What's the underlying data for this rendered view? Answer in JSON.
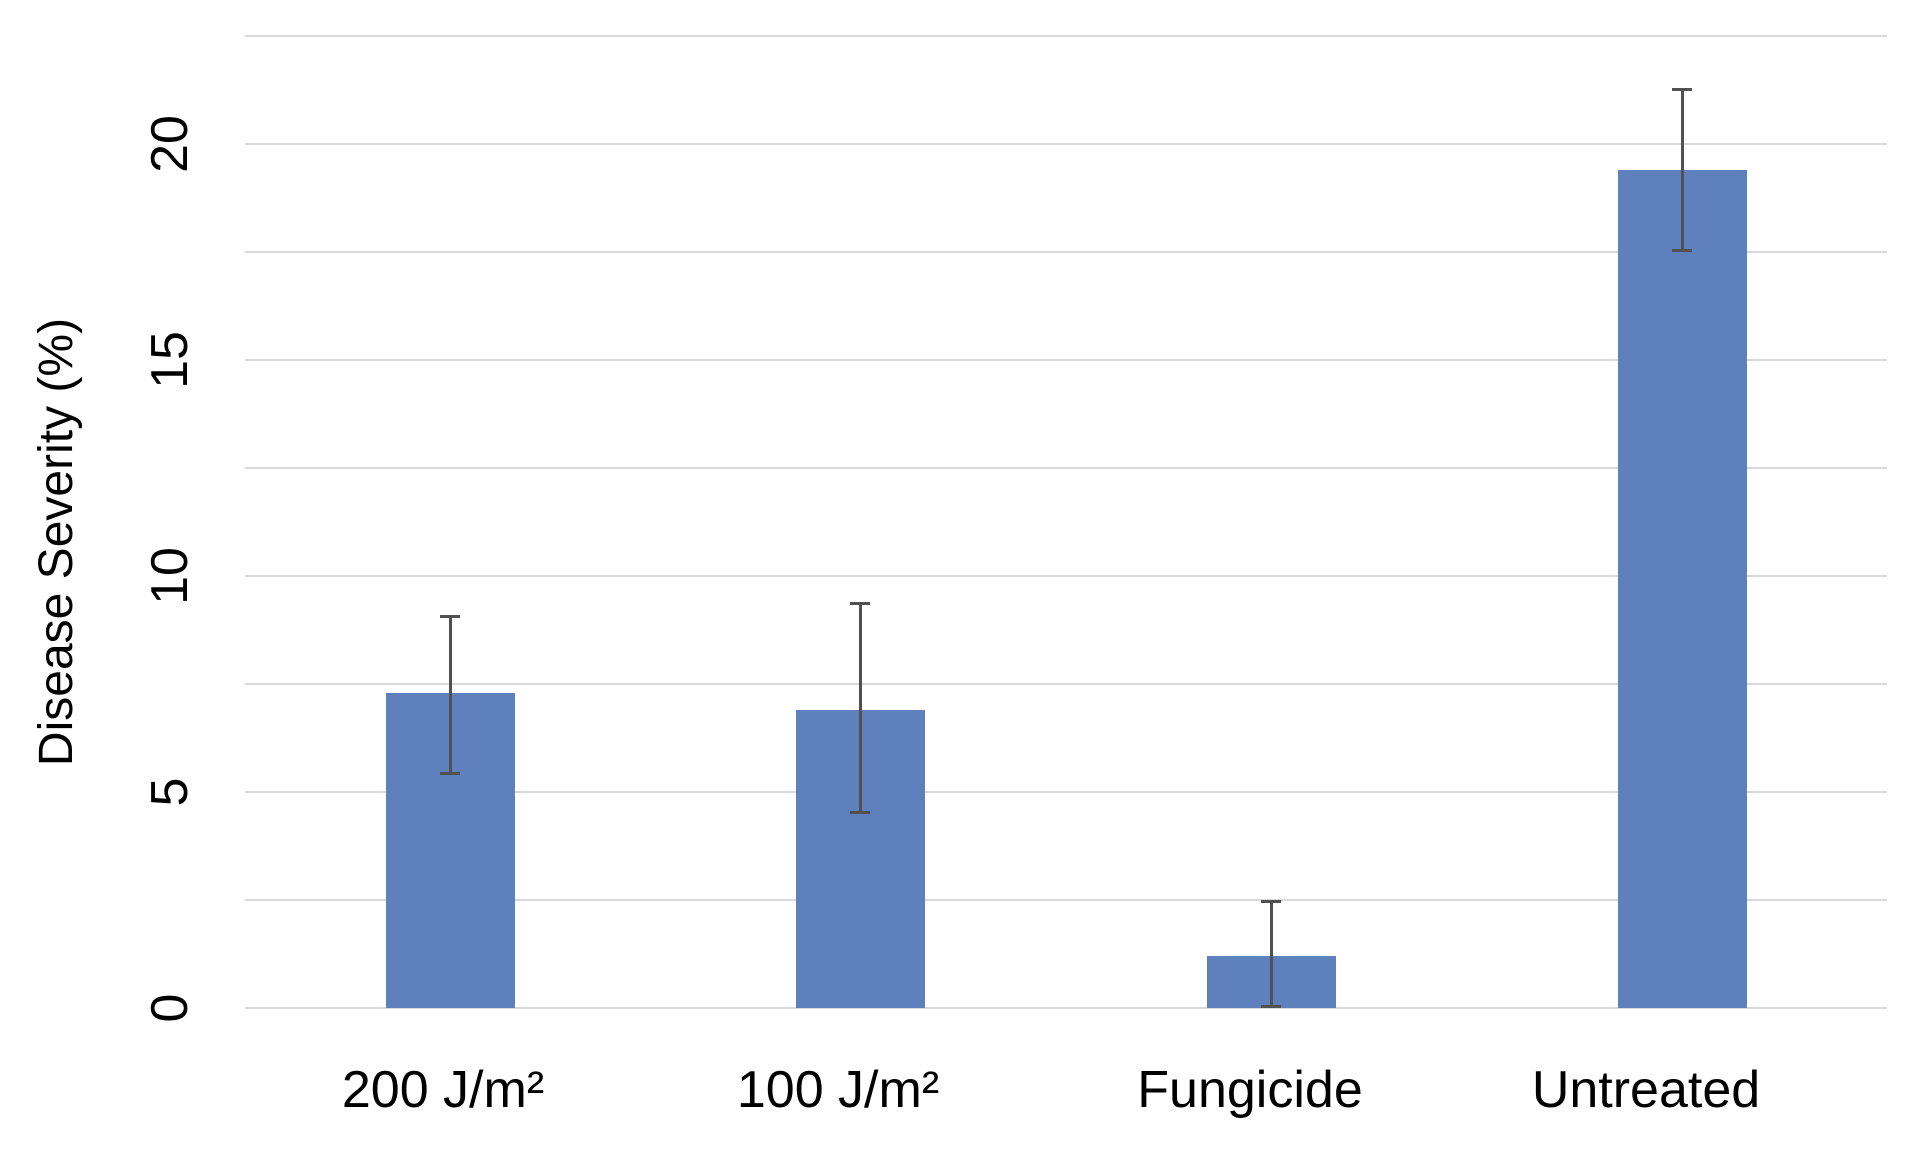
{
  "chart_data": {
    "type": "bar",
    "title": "",
    "xlabel": "",
    "ylabel": "Disease Severity (%)",
    "categories": [
      "200 J/m²",
      "100 J/m²",
      "Fungicide",
      "Untreated"
    ],
    "values": [
      7.3,
      6.9,
      1.2,
      19.4
    ],
    "error_bars": [
      {
        "upper": 9.1,
        "lower": 5.4
      },
      {
        "upper": 9.4,
        "lower": 4.5
      },
      {
        "upper": 2.5,
        "lower": 0.0
      },
      {
        "upper": 21.3,
        "lower": 17.5
      }
    ],
    "ylim": [
      0,
      22.5
    ],
    "ytick_values": [
      0,
      5,
      10,
      15,
      20
    ],
    "gridline_step": 2.5,
    "grid": true,
    "legend": "none",
    "colors": {
      "bar": "#5E80BC",
      "error_bar": "#515151",
      "gridline": "#D9D9D9",
      "text": "#000000",
      "background": "#FFFFFF"
    }
  }
}
